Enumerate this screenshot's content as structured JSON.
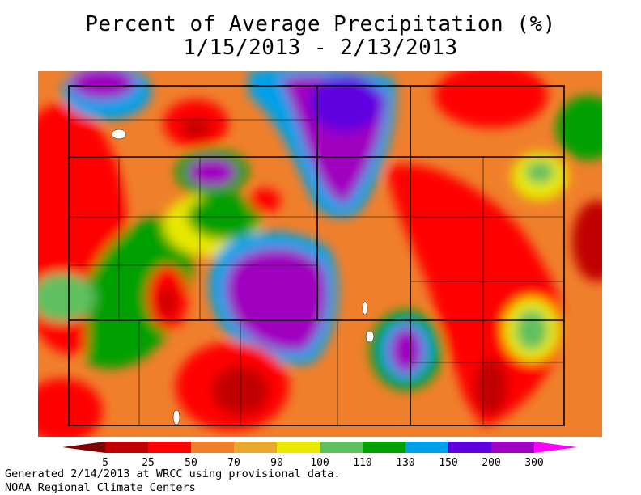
{
  "title": {
    "line1": "Percent of Average Precipitation (%)",
    "line2": "1/15/2013 - 2/13/2013"
  },
  "legend": {
    "bins": [
      {
        "color": "#7f0000"
      },
      {
        "color": "#c00000"
      },
      {
        "color": "#ff0000"
      },
      {
        "color": "#f07f2b"
      },
      {
        "color": "#e8a830"
      },
      {
        "color": "#e8e800"
      },
      {
        "color": "#60c060"
      },
      {
        "color": "#00a000"
      },
      {
        "color": "#00a0e8"
      },
      {
        "color": "#6000e0"
      },
      {
        "color": "#a000c0"
      },
      {
        "color": "#ff00ff"
      }
    ],
    "tick_labels": [
      "5",
      "25",
      "50",
      "70",
      "90",
      "100",
      "110",
      "130",
      "150",
      "200",
      "300"
    ]
  },
  "footer": {
    "line1": "Generated 2/14/2013 at WRCC using provisional data.",
    "line2": "NOAA Regional Climate Centers"
  }
}
